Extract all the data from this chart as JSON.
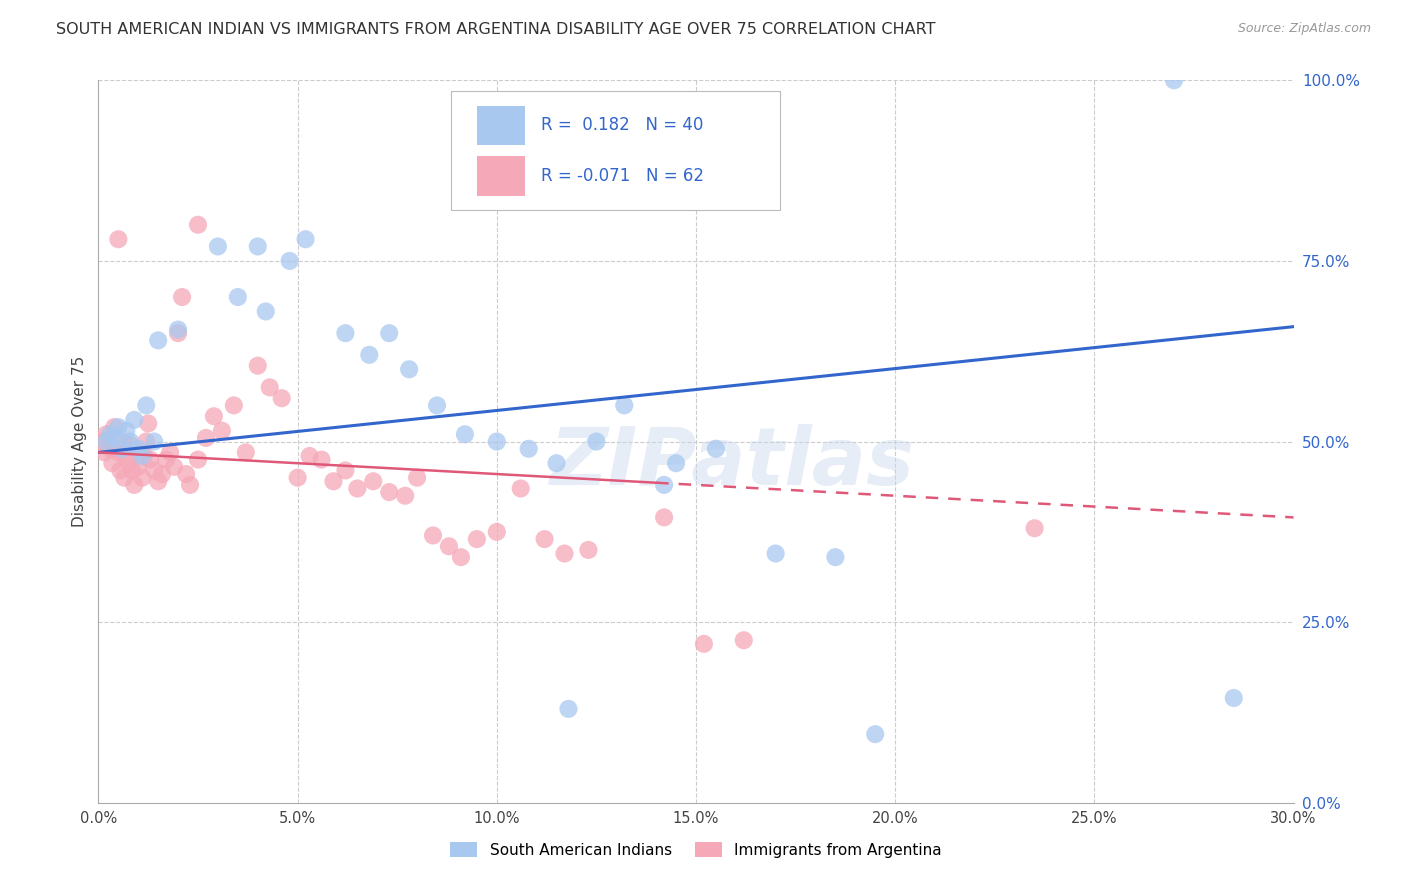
{
  "title": "SOUTH AMERICAN INDIAN VS IMMIGRANTS FROM ARGENTINA DISABILITY AGE OVER 75 CORRELATION CHART",
  "source": "Source: ZipAtlas.com",
  "ylabel": "Disability Age Over 75",
  "x_tick_vals": [
    0.0,
    5.0,
    10.0,
    15.0,
    20.0,
    25.0,
    30.0
  ],
  "y_right_vals": [
    100.0,
    75.0,
    50.0,
    25.0,
    0.0
  ],
  "xlim": [
    0.0,
    30.0
  ],
  "ylim": [
    0.0,
    100.0
  ],
  "blue_color": "#A8C8F0",
  "pink_color": "#F5A8B8",
  "blue_line_color": "#3366CC",
  "pink_line_color": "#E05878",
  "grid_color": "#CCCCCC",
  "background_color": "#FFFFFF",
  "watermark": "ZIPatlas",
  "blue_scatter": [
    [
      0.2,
      50.0
    ],
    [
      0.3,
      51.0
    ],
    [
      0.4,
      50.5
    ],
    [
      0.5,
      52.0
    ],
    [
      0.6,
      49.0
    ],
    [
      0.7,
      51.5
    ],
    [
      0.8,
      50.0
    ],
    [
      0.9,
      53.0
    ],
    [
      1.0,
      49.0
    ],
    [
      1.1,
      48.0
    ],
    [
      1.2,
      55.0
    ],
    [
      1.4,
      50.0
    ],
    [
      1.5,
      64.0
    ],
    [
      2.0,
      65.5
    ],
    [
      3.5,
      70.0
    ],
    [
      4.2,
      68.0
    ],
    [
      4.8,
      75.0
    ],
    [
      5.2,
      78.0
    ],
    [
      6.2,
      65.0
    ],
    [
      6.8,
      62.0
    ],
    [
      7.3,
      65.0
    ],
    [
      7.8,
      60.0
    ],
    [
      8.5,
      55.0
    ],
    [
      9.2,
      51.0
    ],
    [
      10.0,
      50.0
    ],
    [
      10.8,
      49.0
    ],
    [
      11.5,
      47.0
    ],
    [
      12.5,
      50.0
    ],
    [
      13.2,
      55.0
    ],
    [
      14.5,
      47.0
    ],
    [
      15.5,
      49.0
    ],
    [
      17.0,
      34.5
    ],
    [
      18.5,
      34.0
    ],
    [
      19.5,
      9.5
    ],
    [
      11.8,
      13.0
    ],
    [
      27.0,
      100.0
    ],
    [
      28.5,
      14.5
    ],
    [
      3.0,
      77.0
    ],
    [
      4.0,
      77.0
    ],
    [
      14.2,
      44.0
    ]
  ],
  "pink_scatter": [
    [
      0.1,
      50.0
    ],
    [
      0.15,
      48.5
    ],
    [
      0.2,
      51.0
    ],
    [
      0.3,
      49.0
    ],
    [
      0.35,
      47.0
    ],
    [
      0.4,
      52.0
    ],
    [
      0.5,
      48.5
    ],
    [
      0.55,
      46.0
    ],
    [
      0.6,
      50.0
    ],
    [
      0.65,
      45.0
    ],
    [
      0.7,
      48.0
    ],
    [
      0.75,
      47.0
    ],
    [
      0.8,
      49.5
    ],
    [
      0.85,
      46.0
    ],
    [
      0.9,
      44.0
    ],
    [
      1.0,
      46.5
    ],
    [
      1.1,
      45.0
    ],
    [
      1.15,
      48.0
    ],
    [
      1.2,
      50.0
    ],
    [
      1.25,
      52.5
    ],
    [
      1.3,
      47.5
    ],
    [
      1.4,
      46.0
    ],
    [
      1.5,
      44.5
    ],
    [
      1.6,
      45.5
    ],
    [
      1.7,
      47.5
    ],
    [
      1.8,
      48.5
    ],
    [
      1.9,
      46.5
    ],
    [
      2.0,
      65.0
    ],
    [
      2.1,
      70.0
    ],
    [
      2.2,
      45.5
    ],
    [
      2.3,
      44.0
    ],
    [
      2.5,
      47.5
    ],
    [
      2.7,
      50.5
    ],
    [
      2.9,
      53.5
    ],
    [
      3.1,
      51.5
    ],
    [
      3.4,
      55.0
    ],
    [
      3.7,
      48.5
    ],
    [
      4.0,
      60.5
    ],
    [
      4.3,
      57.5
    ],
    [
      4.6,
      56.0
    ],
    [
      5.0,
      45.0
    ],
    [
      5.3,
      48.0
    ],
    [
      5.6,
      47.5
    ],
    [
      5.9,
      44.5
    ],
    [
      6.2,
      46.0
    ],
    [
      6.5,
      43.5
    ],
    [
      6.9,
      44.5
    ],
    [
      7.3,
      43.0
    ],
    [
      7.7,
      42.5
    ],
    [
      8.0,
      45.0
    ],
    [
      8.4,
      37.0
    ],
    [
      8.8,
      35.5
    ],
    [
      9.1,
      34.0
    ],
    [
      9.5,
      36.5
    ],
    [
      10.0,
      37.5
    ],
    [
      10.6,
      43.5
    ],
    [
      11.2,
      36.5
    ],
    [
      11.7,
      34.5
    ],
    [
      12.3,
      35.0
    ],
    [
      14.2,
      39.5
    ],
    [
      15.2,
      22.0
    ],
    [
      16.2,
      22.5
    ],
    [
      23.5,
      38.0
    ],
    [
      2.5,
      80.0
    ],
    [
      0.5,
      78.0
    ]
  ],
  "blue_line_y_intercept": 48.5,
  "blue_line_slope": 0.58,
  "pink_line_y_intercept": 48.5,
  "pink_line_slope": -0.3,
  "pink_solid_end": 14.0,
  "legend_entries": [
    {
      "label": "South American Indians",
      "color": "#A8C8F0"
    },
    {
      "label": "Immigrants from Argentina",
      "color": "#F5A8B8"
    }
  ]
}
